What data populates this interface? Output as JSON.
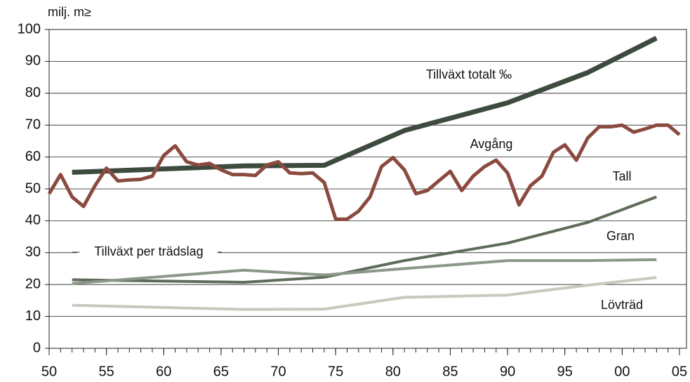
{
  "chart_data": {
    "type": "line",
    "y_label": "milj. m≥",
    "annotation": "Tillväxt per trädslag",
    "xlim": [
      1950,
      2005
    ],
    "xticks": [
      {
        "value": 1950,
        "label": "50"
      },
      {
        "value": 1955,
        "label": "55"
      },
      {
        "value": 1960,
        "label": "60"
      },
      {
        "value": 1965,
        "label": "65"
      },
      {
        "value": 1970,
        "label": "70"
      },
      {
        "value": 1975,
        "label": "75"
      },
      {
        "value": 1980,
        "label": "80"
      },
      {
        "value": 1985,
        "label": "85"
      },
      {
        "value": 1990,
        "label": "90"
      },
      {
        "value": 1995,
        "label": "95"
      },
      {
        "value": 2000,
        "label": "00"
      },
      {
        "value": 2005,
        "label": "05"
      }
    ],
    "ylim": [
      0,
      100
    ],
    "yticks": [
      0,
      10,
      20,
      30,
      40,
      50,
      60,
      70,
      80,
      90,
      100
    ],
    "grid": true,
    "series": [
      {
        "name": "Tillväxt totalt ‰",
        "color": "#3d4a3e",
        "x": [
          1952,
          1967,
          1974,
          1981,
          1990,
          1997,
          2003
        ],
        "values": [
          55.2,
          57.2,
          57.4,
          68.3,
          77,
          86.5,
          97.3
        ]
      },
      {
        "name": "Avgång",
        "color": "#8b4a40",
        "x": [
          1950,
          1951,
          1952,
          1953,
          1954,
          1955,
          1956,
          1957,
          1958,
          1959,
          1960,
          1961,
          1962,
          1963,
          1964,
          1965,
          1966,
          1967,
          1968,
          1969,
          1970,
          1971,
          1972,
          1973,
          1974,
          1975,
          1976,
          1977,
          1978,
          1979,
          1980,
          1981,
          1982,
          1983,
          1984,
          1985,
          1986,
          1987,
          1988,
          1989,
          1990,
          1991,
          1992,
          1993,
          1994,
          1995,
          1996,
          1997,
          1998,
          1999,
          2000,
          2001,
          2002,
          2003,
          2004,
          2005
        ],
        "values": [
          48.5,
          54.5,
          47.5,
          44.5,
          51,
          56.5,
          52.5,
          52.8,
          53,
          54,
          60.5,
          63.5,
          58.5,
          57.5,
          58,
          56,
          54.5,
          54.5,
          54.2,
          57.5,
          58.5,
          55,
          54.8,
          55,
          52,
          40.5,
          40.5,
          43,
          47.5,
          57,
          59.8,
          56,
          48.5,
          49.5,
          52.5,
          55.5,
          49.5,
          54,
          57,
          59,
          55,
          45,
          51,
          54,
          61.5,
          63.8,
          59,
          66,
          69.5,
          69.5,
          70,
          67.8,
          68.8,
          70,
          70,
          67
        ]
      },
      {
        "name": "Tall",
        "color": "#8c978a",
        "x": [
          1952,
          1967,
          1974,
          1981,
          1990,
          1997,
          2003
        ],
        "values": [
          20.3,
          24.5,
          23,
          25,
          27.5,
          27.5,
          27.8
        ]
      },
      {
        "name": "Gran",
        "color": "#5f6c5a",
        "x": [
          1952,
          1967,
          1974,
          1981,
          1990,
          1997,
          2003
        ],
        "values": [
          21.5,
          20.7,
          22.3,
          27.5,
          33,
          39.5,
          47.5
        ]
      },
      {
        "name": "Lövträd",
        "color": "#c6cabd",
        "x": [
          1952,
          1967,
          1974,
          1981,
          1990,
          1997,
          2003
        ],
        "values": [
          13.5,
          12.2,
          12.3,
          16,
          16.7,
          19.8,
          22.2
        ]
      }
    ]
  }
}
